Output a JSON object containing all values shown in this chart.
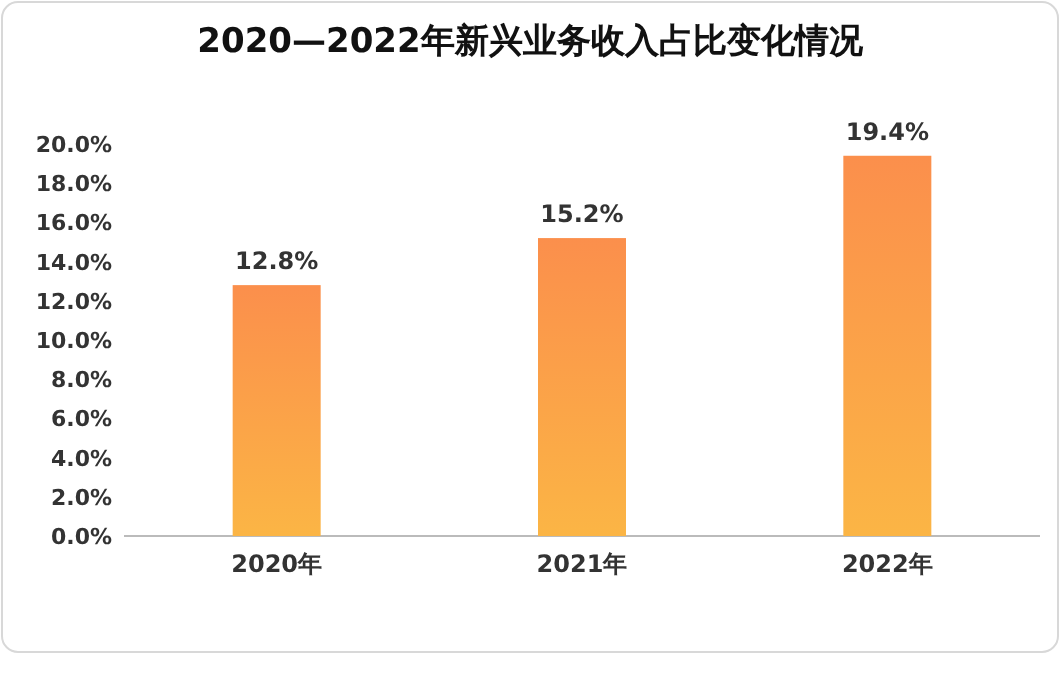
{
  "chart_data": {
    "type": "bar",
    "title": "2020—2022年新兴业务收入占比变化情况",
    "categories": [
      "2020年",
      "2021年",
      "2022年"
    ],
    "values": [
      12.8,
      15.2,
      19.4
    ],
    "value_labels": [
      "12.8%",
      "15.2%",
      "19.4%"
    ],
    "color": "#fb8f4c",
    "ylim": [
      0,
      20
    ],
    "yticks": [
      {
        "value": 0,
        "label": "0.0%"
      },
      {
        "value": 2,
        "label": "2.0%"
      },
      {
        "value": 4,
        "label": "4.0%"
      },
      {
        "value": 6,
        "label": "6.0%"
      },
      {
        "value": 8,
        "label": "8.0%"
      },
      {
        "value": 10,
        "label": "10.0%"
      },
      {
        "value": 12,
        "label": "12.0%"
      },
      {
        "value": 14,
        "label": "14.0%"
      },
      {
        "value": 16,
        "label": "16.0%"
      },
      {
        "value": 18,
        "label": "18.0%"
      },
      {
        "value": 20,
        "label": "20.0%"
      }
    ]
  }
}
